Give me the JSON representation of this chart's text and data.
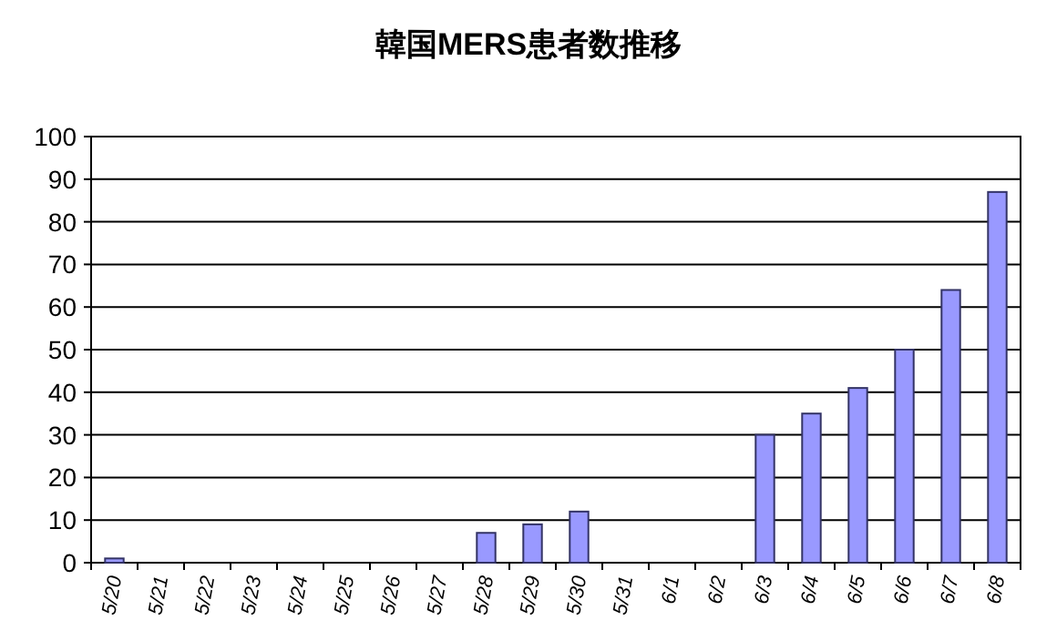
{
  "chart_data": {
    "type": "bar",
    "title": "韓国MERS患者数推移",
    "categories": [
      "5/20",
      "5/21",
      "5/22",
      "5/23",
      "5/24",
      "5/25",
      "5/26",
      "5/27",
      "5/28",
      "5/29",
      "5/30",
      "5/31",
      "6/1",
      "6/2",
      "6/3",
      "6/4",
      "6/5",
      "6/6",
      "6/7",
      "6/8"
    ],
    "values": [
      1,
      0,
      0,
      0,
      0,
      0,
      0,
      0,
      7,
      9,
      12,
      0,
      0,
      0,
      30,
      35,
      41,
      50,
      64,
      87
    ],
    "color": "#9999ff",
    "ylim": [
      0,
      100
    ],
    "yticks": [
      0,
      10,
      20,
      30,
      40,
      50,
      60,
      70,
      80,
      90,
      100
    ],
    "grid": "y"
  }
}
